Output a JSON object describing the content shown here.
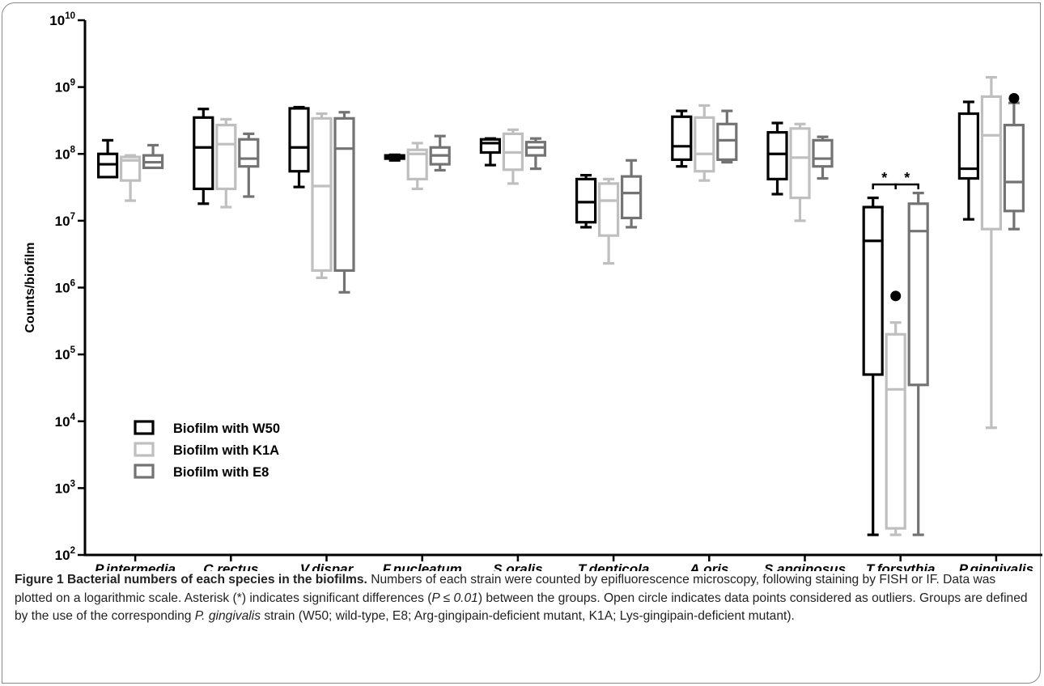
{
  "chart_data": {
    "type": "box",
    "ylabel": "Counts/biofilm",
    "yscale": "log",
    "ylim": [
      100,
      10000000000
    ],
    "y_ticks": [
      {
        "base": "10",
        "exp": "2"
      },
      {
        "base": "10",
        "exp": "3"
      },
      {
        "base": "10",
        "exp": "4"
      },
      {
        "base": "10",
        "exp": "5"
      },
      {
        "base": "10",
        "exp": "6"
      },
      {
        "base": "10",
        "exp": "7"
      },
      {
        "base": "10",
        "exp": "8"
      },
      {
        "base": "10",
        "exp": "9"
      },
      {
        "base": "10",
        "exp": "10"
      }
    ],
    "categories": [
      "P.intermedia",
      "C.rectus",
      "V.dispar",
      "F.nucleatum",
      "S.oralis",
      "T.denticola",
      "A.oris",
      "S.anginosus",
      "T.forsythia",
      "P.gingivalis"
    ],
    "legend_position": "lower-left",
    "series": [
      {
        "name": "Biofilm with W50",
        "color": "#000000",
        "boxes": [
          {
            "min": 45000000,
            "q1": 45000000,
            "median": 70000000,
            "q3": 100000000,
            "max": 160000000
          },
          {
            "min": 18000000,
            "q1": 30000000,
            "median": 125000000,
            "q3": 350000000,
            "max": 470000000
          },
          {
            "min": 32000000,
            "q1": 55000000,
            "median": 125000000,
            "q3": 480000000,
            "max": 500000000
          },
          {
            "min": 80000000,
            "q1": 85000000,
            "median": 90000000,
            "q3": 95000000,
            "max": 97000000
          },
          {
            "min": 68000000,
            "q1": 105000000,
            "median": 145000000,
            "q3": 165000000,
            "max": 170000000
          },
          {
            "min": 8000000,
            "q1": 9500000,
            "median": 19000000,
            "q3": 42000000,
            "max": 48000000
          },
          {
            "min": 65000000,
            "q1": 82000000,
            "median": 130000000,
            "q3": 360000000,
            "max": 440000000
          },
          {
            "min": 25000000,
            "q1": 42000000,
            "median": 100000000,
            "q3": 210000000,
            "max": 290000000
          },
          {
            "min": 200,
            "q1": 50000,
            "median": 5000000,
            "q3": 16000000,
            "max": 22000000
          },
          {
            "min": 10500000,
            "q1": 43000000,
            "median": 60000000,
            "q3": 400000000,
            "max": 600000000
          }
        ],
        "outliers": [
          [],
          [],
          [],
          [],
          [],
          [],
          [],
          [],
          [],
          []
        ]
      },
      {
        "name": "Biofilm with K1A",
        "color": "#bfbfbf",
        "boxes": [
          {
            "min": 20000000,
            "q1": 40000000,
            "median": 80000000,
            "q3": 90000000,
            "max": 95000000
          },
          {
            "min": 16000000,
            "q1": 30000000,
            "median": 140000000,
            "q3": 270000000,
            "max": 330000000
          },
          {
            "min": 1400000,
            "q1": 1800000,
            "median": 33000000,
            "q3": 340000000,
            "max": 400000000
          },
          {
            "min": 30000000,
            "q1": 42000000,
            "median": 100000000,
            "q3": 115000000,
            "max": 145000000
          },
          {
            "min": 36000000,
            "q1": 58000000,
            "median": 105000000,
            "q3": 200000000,
            "max": 230000000
          },
          {
            "min": 2300000,
            "q1": 6000000,
            "median": 20000000,
            "q3": 36000000,
            "max": 42000000
          },
          {
            "min": 40000000,
            "q1": 55000000,
            "median": 100000000,
            "q3": 350000000,
            "max": 530000000
          },
          {
            "min": 10000000,
            "q1": 22000000,
            "median": 88000000,
            "q3": 240000000,
            "max": 280000000
          },
          {
            "min": 200,
            "q1": 250,
            "median": 30000,
            "q3": 200000,
            "max": 300000
          },
          {
            "min": 8000,
            "q1": 7500000,
            "median": 190000000,
            "q3": 720000000,
            "max": 1400000000
          }
        ],
        "outliers": [
          [],
          [],
          [],
          [],
          [],
          [],
          [],
          [],
          [
            750000
          ],
          []
        ]
      },
      {
        "name": "Biofilm with E8",
        "color": "#737373",
        "boxes": [
          {
            "min": 62000000,
            "q1": 62000000,
            "median": 75000000,
            "q3": 95000000,
            "max": 135000000
          },
          {
            "min": 23000000,
            "q1": 65000000,
            "median": 85000000,
            "q3": 165000000,
            "max": 200000000
          },
          {
            "min": 850000,
            "q1": 1800000,
            "median": 120000000,
            "q3": 340000000,
            "max": 420000000
          },
          {
            "min": 57000000,
            "q1": 70000000,
            "median": 95000000,
            "q3": 125000000,
            "max": 185000000
          },
          {
            "min": 60000000,
            "q1": 95000000,
            "median": 125000000,
            "q3": 150000000,
            "max": 170000000
          },
          {
            "min": 8000000,
            "q1": 11000000,
            "median": 26000000,
            "q3": 46000000,
            "max": 80000000
          },
          {
            "min": 75000000,
            "q1": 82000000,
            "median": 160000000,
            "q3": 280000000,
            "max": 440000000
          },
          {
            "min": 43000000,
            "q1": 65000000,
            "median": 85000000,
            "q3": 160000000,
            "max": 180000000
          },
          {
            "min": 200,
            "q1": 35000,
            "median": 7000000,
            "q3": 18000000,
            "max": 26000000
          },
          {
            "min": 7500000,
            "q1": 14000000,
            "median": 38000000,
            "q3": 270000000,
            "max": 580000000
          }
        ],
        "outliers": [
          [],
          [],
          [],
          [],
          [],
          [],
          [],
          [],
          [],
          [
            680000000
          ]
        ]
      }
    ],
    "annotations": [
      {
        "category": "T.forsythia",
        "from_series": 0,
        "to_series": 1,
        "text": "*",
        "y": 25000000
      },
      {
        "category": "T.forsythia",
        "from_series": 1,
        "to_series": 2,
        "text": "*",
        "y": 25000000
      }
    ]
  },
  "caption": {
    "title": "Figure 1 Bacterial numbers of each species in the biofilms.",
    "seg1": " Numbers of each strain were counted by epifluorescence microscopy, following staining by FISH or IF. Data was plotted on a logarithmic scale. Asterisk (*) indicates significant differences (",
    "p_value": "P ≤ 0.01",
    "seg2": ") between the groups. Open circle indicates data points considered as outliers. Groups are defined by the use of the corresponding ",
    "species": "P. gingivalis",
    "seg3": " strain (W50; wild-type, E8; Arg-gingipain-deficient mutant, K1A; Lys-gingipain-deficient mutant)."
  }
}
